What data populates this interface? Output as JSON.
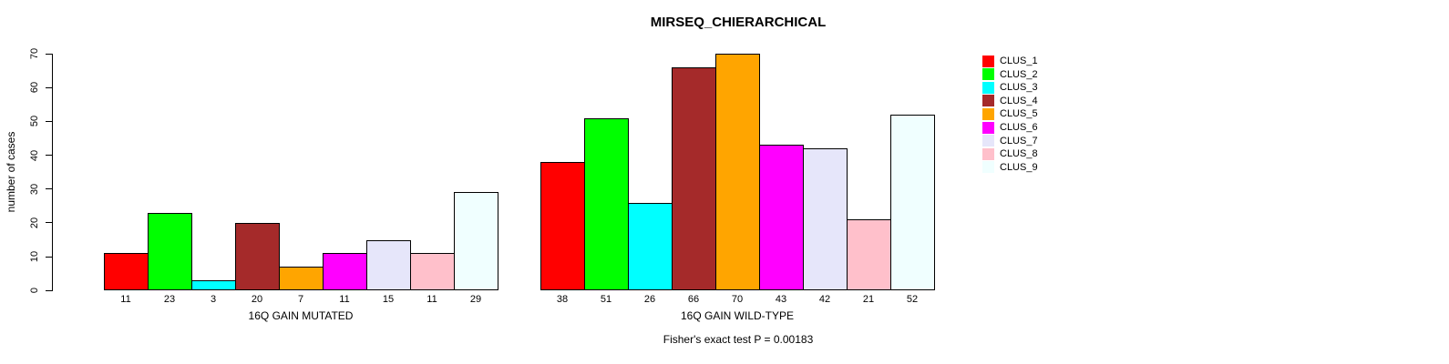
{
  "title": "MIRSEQ_CHIERARCHICAL",
  "footer": "Fisher's exact test P = 0.00183",
  "chart_data": {
    "type": "bar",
    "title": "MIRSEQ_CHIERARCHICAL",
    "ylabel": "number of cases",
    "xlabel": "",
    "ylim": [
      0,
      70
    ],
    "y_ticks": [
      0,
      10,
      20,
      30,
      40,
      50,
      60,
      70
    ],
    "grid": false,
    "legend_position": "top-right",
    "bar_value_labels_shown": true,
    "groups": [
      {
        "label": "16Q GAIN MUTATED"
      },
      {
        "label": "16Q GAIN WILD-TYPE"
      }
    ],
    "series": [
      {
        "name": "CLUS_1",
        "color": "#FF0000",
        "values": [
          11,
          38
        ]
      },
      {
        "name": "CLUS_2",
        "color": "#00FF00",
        "values": [
          23,
          51
        ]
      },
      {
        "name": "CLUS_3",
        "color": "#00FFFF",
        "values": [
          3,
          26
        ]
      },
      {
        "name": "CLUS_4",
        "color": "#A52A2A",
        "values": [
          20,
          66
        ]
      },
      {
        "name": "CLUS_5",
        "color": "#FFA500",
        "values": [
          7,
          70
        ]
      },
      {
        "name": "CLUS_6",
        "color": "#FF00FF",
        "values": [
          11,
          43
        ]
      },
      {
        "name": "CLUS_7",
        "color": "#E6E6FA",
        "values": [
          15,
          42
        ]
      },
      {
        "name": "CLUS_8",
        "color": "#FFC0CB",
        "values": [
          11,
          21
        ]
      },
      {
        "name": "CLUS_9",
        "color": "#F0FFFF",
        "values": [
          29,
          52
        ]
      }
    ],
    "annotation": "Fisher's exact test P = 0.00183"
  }
}
